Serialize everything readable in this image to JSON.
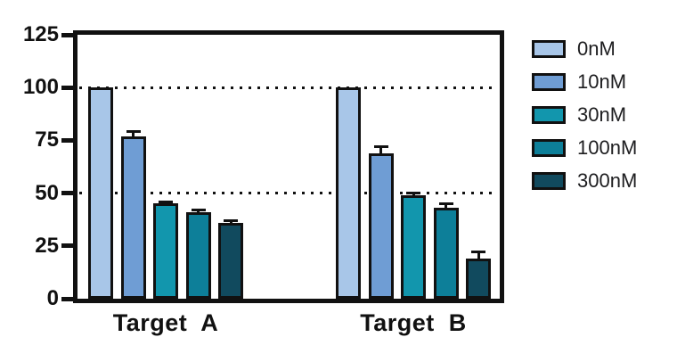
{
  "chart_data": {
    "type": "bar",
    "title": "",
    "xlabel": "",
    "ylabel": "",
    "categories": [
      "Target  A",
      "Target  B"
    ],
    "series": [
      {
        "name": "0nM",
        "color": "#a8c6e8",
        "values": [
          100,
          100
        ],
        "errors": [
          0,
          0
        ]
      },
      {
        "name": "10nM",
        "color": "#6f9dd4",
        "values": [
          77,
          69
        ],
        "errors": [
          2,
          3
        ]
      },
      {
        "name": "30nM",
        "color": "#1296ad",
        "values": [
          45,
          49
        ],
        "errors": [
          1,
          1
        ]
      },
      {
        "name": "100nM",
        "color": "#0d7f99",
        "values": [
          41,
          43
        ],
        "errors": [
          1,
          2
        ]
      },
      {
        "name": "300nM",
        "color": "#114a5e",
        "values": [
          36,
          19
        ],
        "errors": [
          1,
          3
        ]
      }
    ],
    "ylim": [
      0,
      125
    ],
    "yticks": [
      0,
      25,
      50,
      75,
      100,
      125
    ],
    "gridlines_at": [
      50,
      100
    ],
    "grid_style": "dotted",
    "legend_position": "right",
    "axis_color": "#111111",
    "background": "#ffffff"
  }
}
